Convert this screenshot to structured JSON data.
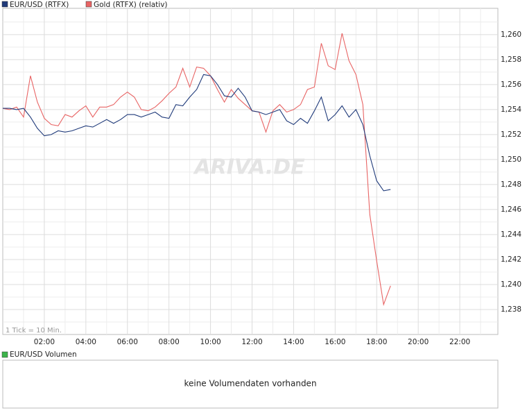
{
  "chart_data": {
    "type": "line",
    "legend": [
      "EUR/USD (RTFX)",
      "Gold (RTFX) (relativ)"
    ],
    "annotation": "1 Tick = 10 Min.",
    "watermark": "ARIVA.DE",
    "volume_title": "EUR/USD Volumen",
    "volume_message": "keine Volumendaten vorhanden",
    "volume_color": "#3cb44b",
    "grid": true,
    "xlim": [
      "00:00",
      "23:50"
    ],
    "xticks": [
      "02:00",
      "04:00",
      "06:00",
      "08:00",
      "10:00",
      "12:00",
      "14:00",
      "16:00",
      "18:00",
      "20:00",
      "22:00"
    ],
    "xminorticks": [
      "01:00",
      "03:00",
      "05:00",
      "07:00",
      "09:00",
      "11:00",
      "13:00",
      "15:00",
      "17:00",
      "19:00",
      "21:00",
      "23:00"
    ],
    "ylim": [
      1.236,
      1.2621
    ],
    "yticks": [
      {
        "value": 1.238,
        "label": "1,238"
      },
      {
        "value": 1.24,
        "label": "1,240"
      },
      {
        "value": 1.242,
        "label": "1,242"
      },
      {
        "value": 1.244,
        "label": "1,244"
      },
      {
        "value": 1.246,
        "label": "1,246"
      },
      {
        "value": 1.248,
        "label": "1,248"
      },
      {
        "value": 1.25,
        "label": "1,250"
      },
      {
        "value": 1.252,
        "label": "1,252"
      },
      {
        "value": 1.254,
        "label": "1,254"
      },
      {
        "value": 1.256,
        "label": "1,256"
      },
      {
        "value": 1.258,
        "label": "1,258"
      },
      {
        "value": 1.26,
        "label": "1,260"
      }
    ],
    "yminorticks": [
      1.237,
      1.239,
      1.241,
      1.243,
      1.245,
      1.247,
      1.249,
      1.251,
      1.253,
      1.255,
      1.257,
      1.259,
      1.261
    ],
    "x": [
      "00:00",
      "00:20",
      "00:40",
      "01:00",
      "01:20",
      "01:40",
      "02:00",
      "02:20",
      "02:40",
      "03:00",
      "03:20",
      "03:40",
      "04:00",
      "04:20",
      "04:40",
      "05:00",
      "05:20",
      "05:40",
      "06:00",
      "06:20",
      "06:40",
      "07:00",
      "07:20",
      "07:40",
      "08:00",
      "08:20",
      "08:40",
      "09:00",
      "09:20",
      "09:40",
      "10:00",
      "10:20",
      "10:40",
      "11:00",
      "11:20",
      "11:40",
      "12:00",
      "12:20",
      "12:40",
      "13:00",
      "13:20",
      "13:40",
      "14:00",
      "14:20",
      "14:40",
      "15:00",
      "15:20",
      "15:40",
      "16:00",
      "16:20",
      "16:40",
      "17:00",
      "17:20",
      "17:40",
      "18:00",
      "18:20",
      "18:40"
    ],
    "series": [
      {
        "name": "EUR/USD (RTFX)",
        "color": "#1f3a7a",
        "values": [
          1.2541,
          1.2541,
          1.254,
          1.2541,
          1.2534,
          1.2525,
          1.2519,
          1.252,
          1.2523,
          1.2522,
          1.2523,
          1.2525,
          1.2527,
          1.2526,
          1.2529,
          1.2532,
          1.2529,
          1.2532,
          1.2536,
          1.2536,
          1.2534,
          1.2536,
          1.2538,
          1.2534,
          1.2533,
          1.2544,
          1.2543,
          1.255,
          1.2556,
          1.2568,
          1.2567,
          1.256,
          1.2551,
          1.255,
          1.2557,
          1.255,
          1.2539,
          1.2538,
          1.2536,
          1.2538,
          1.254,
          1.2531,
          1.2528,
          1.2533,
          1.2529,
          1.2539,
          1.255,
          1.2531,
          1.2536,
          1.2543,
          1.2534,
          1.254,
          1.2528,
          1.2503,
          1.2483,
          1.2475,
          1.2476
        ]
      },
      {
        "name": "Gold (RTFX) (relativ)",
        "color": "#e86464",
        "values": [
          1.2541,
          1.254,
          1.2542,
          1.2534,
          1.2567,
          1.2546,
          1.2533,
          1.2528,
          1.2527,
          1.2536,
          1.2534,
          1.2539,
          1.2543,
          1.2534,
          1.2542,
          1.2542,
          1.2544,
          1.255,
          1.2554,
          1.255,
          1.254,
          1.2539,
          1.2542,
          1.2547,
          1.2553,
          1.2558,
          1.2573,
          1.2558,
          1.2574,
          1.2573,
          1.2567,
          1.2556,
          1.2546,
          1.2556,
          1.2549,
          1.2544,
          1.2539,
          1.2538,
          1.2522,
          1.2539,
          1.2544,
          1.2538,
          1.254,
          1.2544,
          1.2556,
          1.2558,
          1.2593,
          1.2575,
          1.2572,
          1.2601,
          1.2579,
          1.2568,
          1.2544,
          1.2456,
          1.2419,
          1.2384,
          1.2399
        ]
      }
    ]
  }
}
